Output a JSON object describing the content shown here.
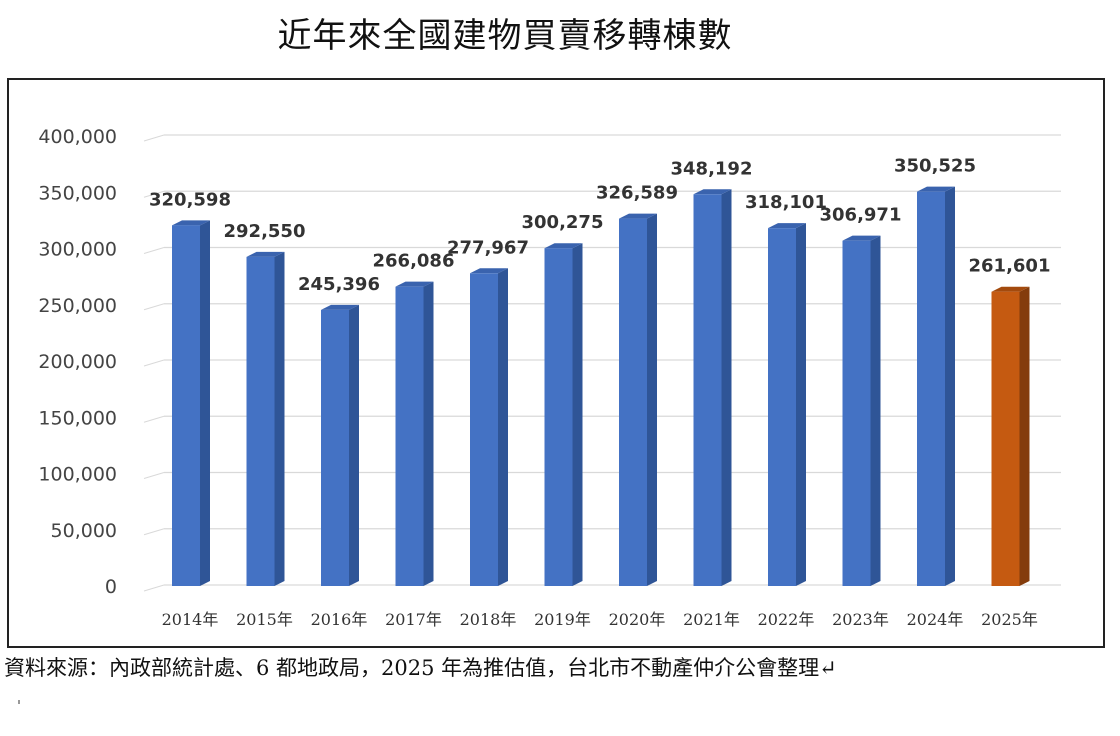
{
  "chart_data": {
    "type": "bar",
    "title": "近年來全國建物買賣移轉棟數",
    "categories": [
      "2014年",
      "2015年",
      "2016年",
      "2017年",
      "2018年",
      "2019年",
      "2020年",
      "2021年",
      "2022年",
      "2023年",
      "2024年",
      "2025年"
    ],
    "values": [
      320598,
      292550,
      245396,
      266086,
      277967,
      300275,
      326589,
      348192,
      318101,
      306971,
      350525,
      261601
    ],
    "data_labels": [
      "320,598",
      "292,550",
      "245,396",
      "266,086",
      "277,967",
      "300,275",
      "326,589",
      "348,192",
      "318,101",
      "306,971",
      "350,525",
      "261,601"
    ],
    "ylim": [
      0,
      400000
    ],
    "y_ticks": [
      "0",
      "50,000",
      "100,000",
      "150,000",
      "200,000",
      "250,000",
      "300,000",
      "350,000",
      "400,000"
    ],
    "grid": true,
    "colors": {
      "bar": "#4472C4",
      "bar_side": "#2F5597",
      "bar_top": "#3A63AE",
      "highlight_bar": "#C55A11",
      "highlight_side": "#843C0C",
      "highlight_top": "#A34A0D",
      "highlight_index": 11
    }
  },
  "source_note": "資料來源：內政部統計處、6 都地政局，2025 年為推估值，台北市不動產仲介公會整理↵"
}
